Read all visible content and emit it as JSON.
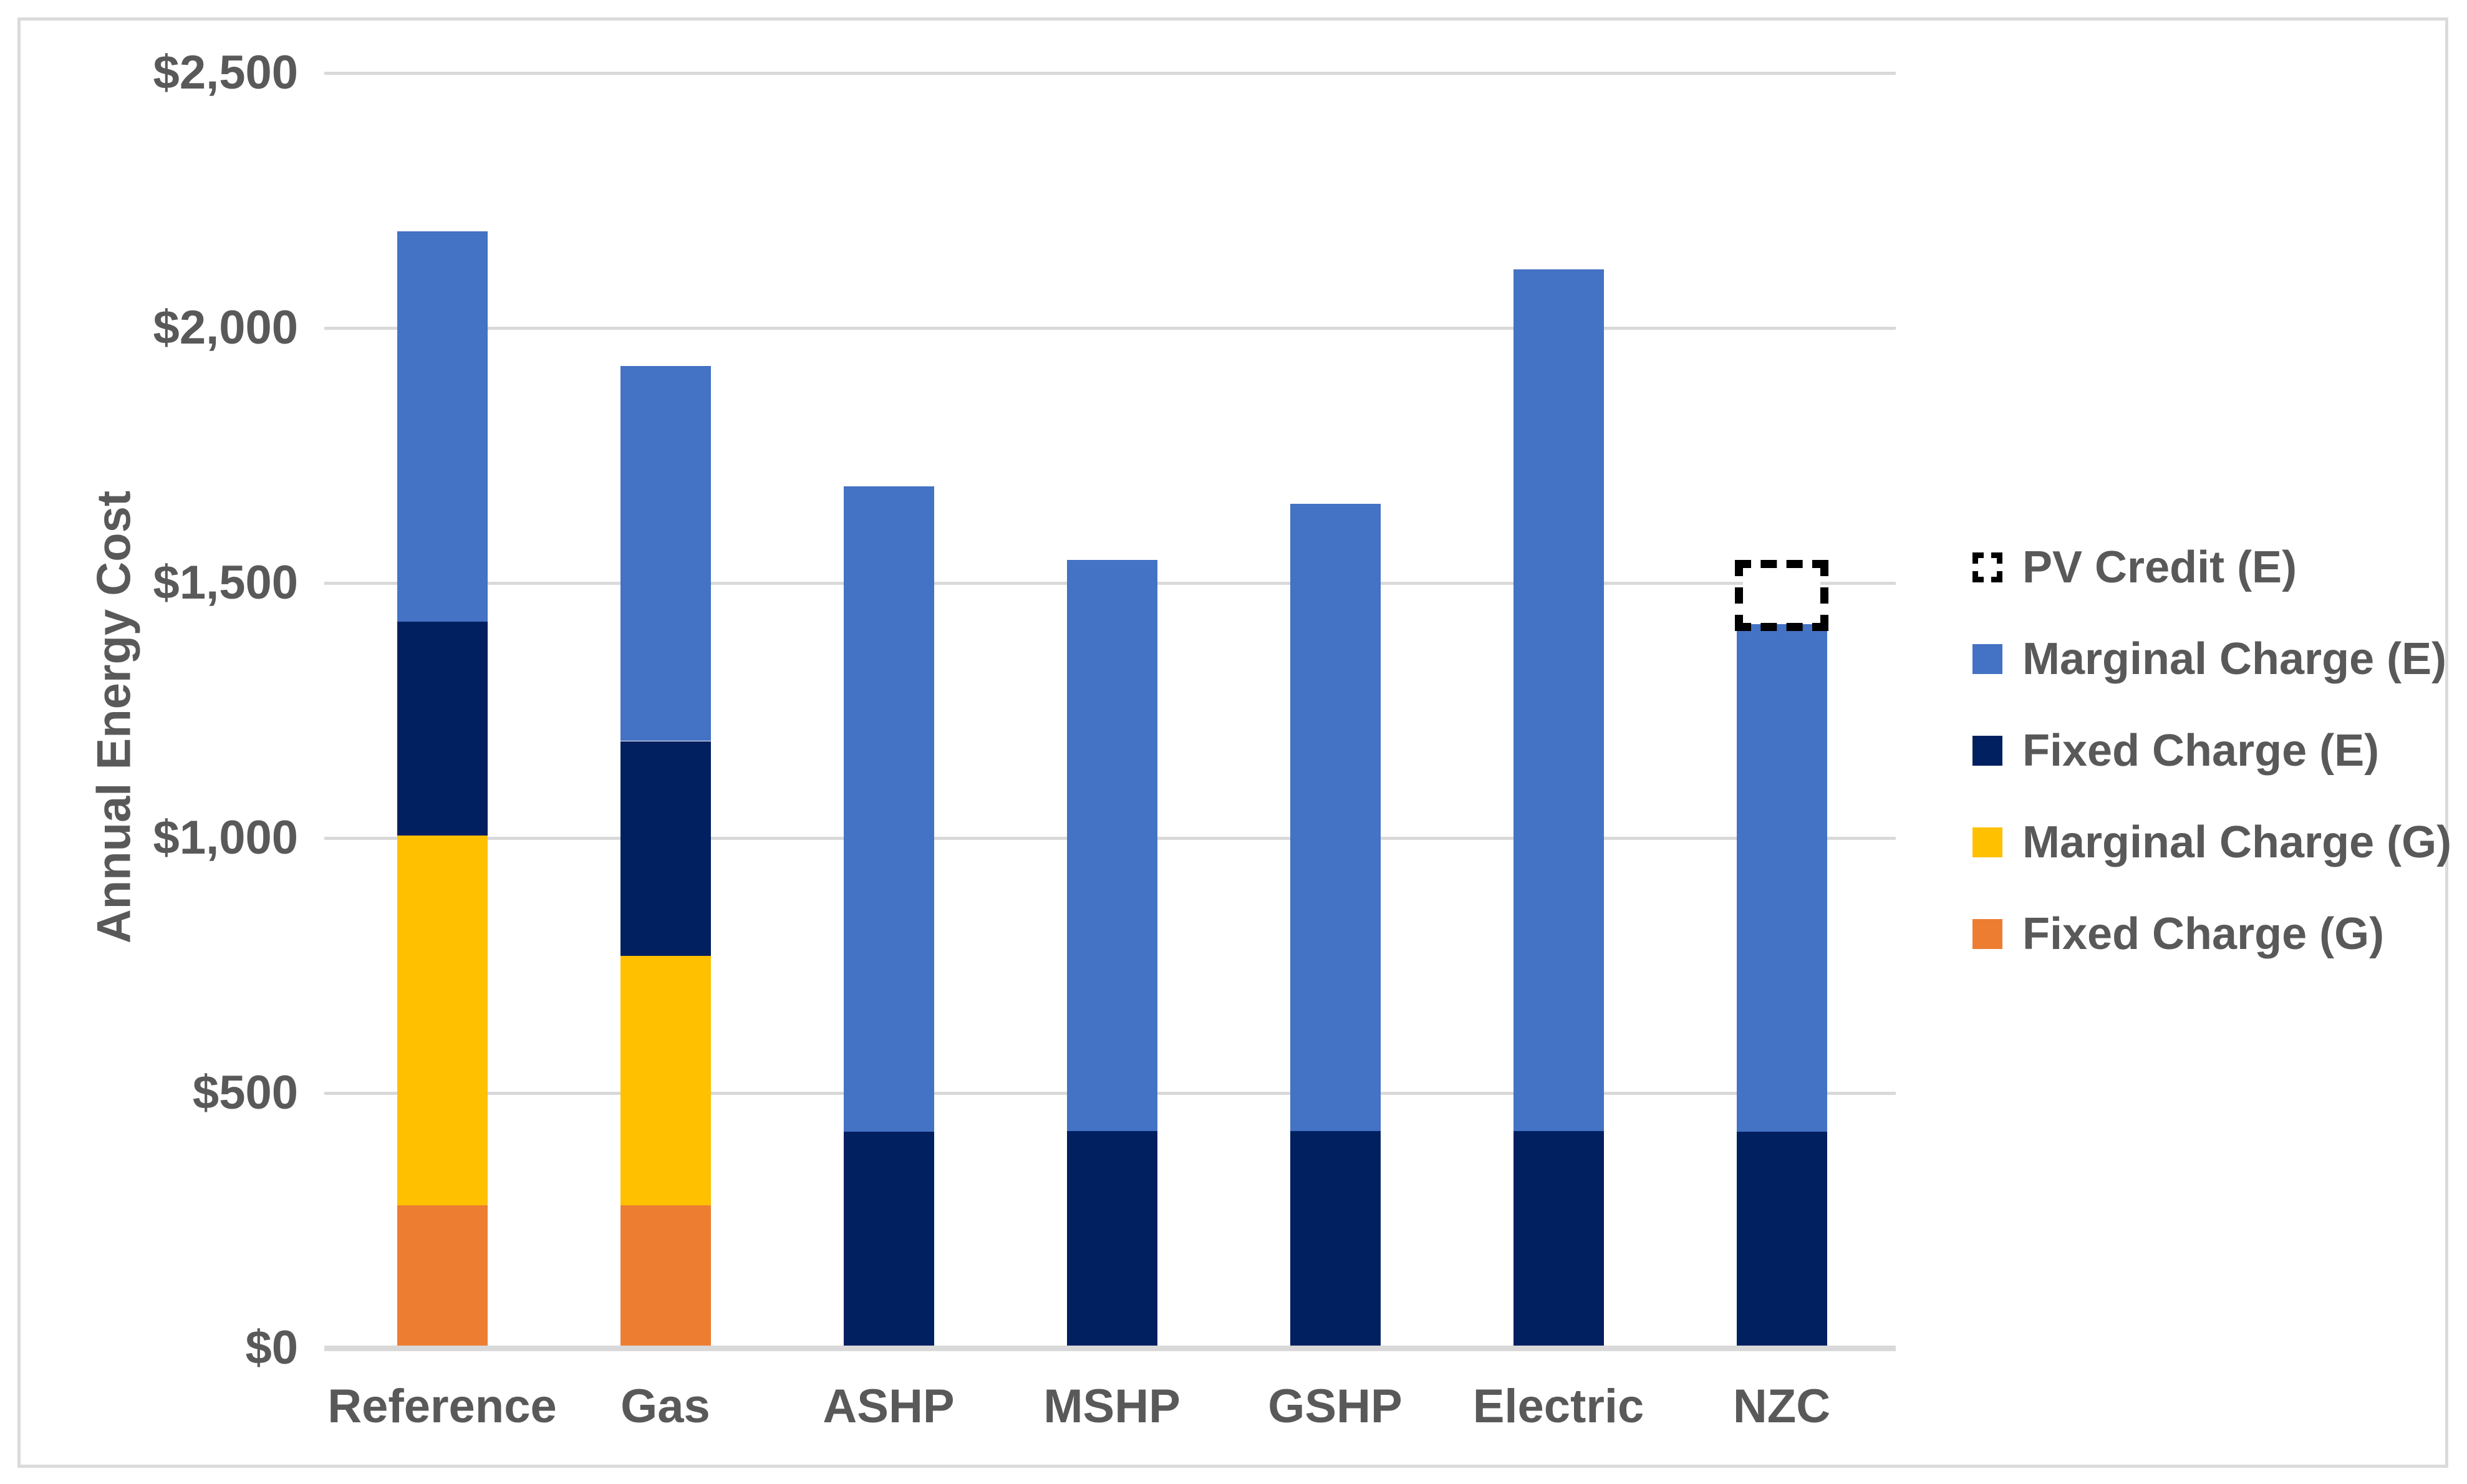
{
  "chart_data": {
    "type": "bar",
    "stacked": true,
    "title": "",
    "xlabel": "",
    "ylabel": "Annual Energy Cost",
    "ylim": [
      0,
      2500
    ],
    "ytick_interval": 500,
    "ytick_labels": [
      "$0",
      "$500",
      "$1,000",
      "$1,500",
      "$2,000",
      "$2,500"
    ],
    "grid": true,
    "legend_position": "right",
    "categories": [
      "Reference",
      "Gas",
      "ASHP",
      "MSHP",
      "GSHP",
      "Electric",
      "NZC"
    ],
    "series": [
      {
        "name": "Fixed Charge (G)",
        "color": "#ED7D31",
        "values": [
          275,
          275,
          0,
          0,
          0,
          0,
          0
        ]
      },
      {
        "name": "Marginal Charge (G)",
        "color": "#FFC000",
        "values": [
          725,
          490,
          0,
          0,
          0,
          0,
          0
        ]
      },
      {
        "name": "Fixed Charge (E)",
        "color": "#002060",
        "values": [
          420,
          420,
          420,
          420,
          420,
          420,
          420
        ]
      },
      {
        "name": "Marginal Charge (E)",
        "color": "#4472C4",
        "values": [
          765,
          735,
          1265,
          1120,
          1230,
          1690,
          995
        ]
      }
    ],
    "pv_credit": {
      "name": "PV Credit (E)",
      "category": "NZC",
      "from": 1415,
      "to": 1540,
      "style": "dashed-outline"
    }
  },
  "legend": {
    "entries": [
      {
        "label": "PV Credit (E)",
        "swatch": "dashed"
      },
      {
        "label": "Marginal Charge (E)",
        "swatch": "#4472C4"
      },
      {
        "label": "Fixed Charge (E)",
        "swatch": "#002060"
      },
      {
        "label": "Marginal Charge (G)",
        "swatch": "#FFC000"
      },
      {
        "label": "Fixed Charge (G)",
        "swatch": "#ED7D31"
      }
    ]
  },
  "colors": {
    "text": "#595959",
    "gridline": "#D9D9D9",
    "axis_line": "#D9D9D9",
    "chart_border": "#DBDBDB",
    "background": "#FFFFFF",
    "pv_outline": "#000000"
  }
}
